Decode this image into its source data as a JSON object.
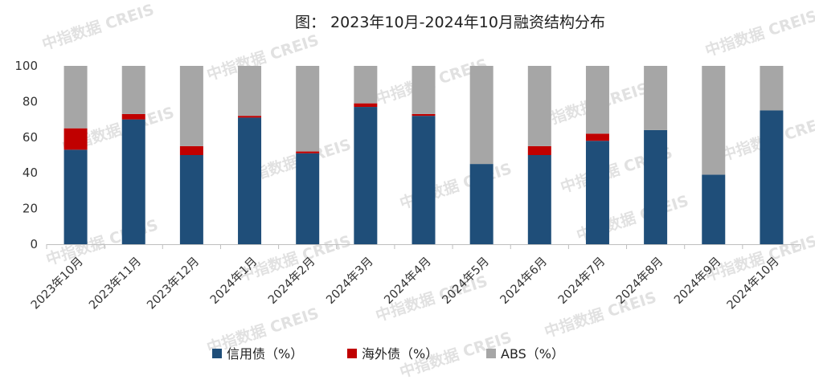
{
  "chart_data": {
    "type": "bar",
    "stacked": true,
    "title": "图：  2023年10月-2024年10月融资结构分布",
    "ylim": [
      0,
      100
    ],
    "yticks": [
      0,
      20,
      40,
      60,
      80,
      100
    ],
    "grid": false,
    "legend_position": "bottom",
    "categories": [
      "2023年10月",
      "2023年11月",
      "2023年12月",
      "2024年1月",
      "2024年2月",
      "2024年3月",
      "2024年4月",
      "2024年5月",
      "2024年6月",
      "2024年7月",
      "2024年8月",
      "2024年9月",
      "2024年10月"
    ],
    "series": [
      {
        "name": "信用债（%）",
        "color": "#1f4e79",
        "values": [
          53,
          70,
          50,
          71,
          51,
          77,
          72,
          45,
          50,
          58,
          64,
          39,
          75
        ]
      },
      {
        "name": "海外债（%）",
        "color": "#c00000",
        "values": [
          12,
          3,
          5,
          1,
          1,
          2,
          1,
          0,
          5,
          4,
          0,
          0,
          0
        ]
      },
      {
        "name": "ABS（%）",
        "color": "#a6a6a6",
        "values": [
          35,
          27,
          45,
          28,
          48,
          21,
          27,
          55,
          45,
          38,
          36,
          61,
          25
        ]
      }
    ]
  },
  "watermark": {
    "text": "中指数据 CREIS"
  }
}
